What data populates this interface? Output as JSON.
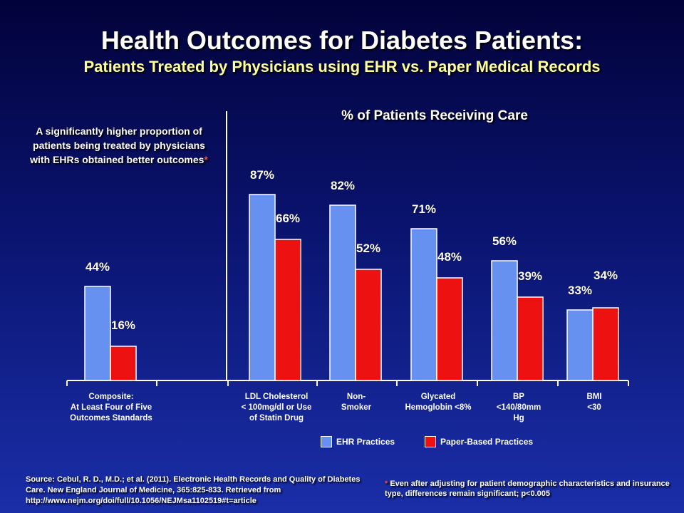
{
  "title": "Health Outcomes for Diabetes Patients:",
  "subtitle": "Patients Treated by Physicians using EHR vs. Paper Medical Records",
  "note": {
    "text": "A significantly higher proportion of patients being treated by physicians with EHRs obtained better outcomes",
    "marker": "*"
  },
  "chart_data": {
    "type": "bar",
    "title": "% of Patients Receiving Care",
    "categories": [
      "Composite: At Least Four of Five Outcomes Standards",
      "LDL Cholesterol < 100mg/dl or Use of Statin Drug",
      "Non- Smoker",
      "Glycated Hemoglobin <8%",
      "BP <140/80mm Hg",
      "BMI <30"
    ],
    "category_lines": [
      [
        "Composite:",
        "At Least Four of Five",
        "Outcomes Standards"
      ],
      [
        "LDL Cholesterol",
        "< 100mg/dl or Use",
        "of Statin Drug"
      ],
      [
        "Non-",
        "Smoker"
      ],
      [
        "Glycated",
        "Hemoglobin <8%"
      ],
      [
        "BP",
        "<140/80mm",
        "Hg"
      ],
      [
        "BMI",
        "<30"
      ]
    ],
    "series": [
      {
        "name": "EHR Practices",
        "color": "#6691f0",
        "values": [
          44,
          87,
          82,
          71,
          56,
          33
        ],
        "labels": [
          "44%",
          "87%",
          "82%",
          "71%",
          "56%",
          "33%"
        ]
      },
      {
        "name": "Paper-Based Practices",
        "color": "#ee1111",
        "values": [
          16,
          66,
          52,
          48,
          39,
          34
        ],
        "labels": [
          "16%",
          "66%",
          "52%",
          "48%",
          "39%",
          "34%"
        ]
      }
    ],
    "ylim": [
      0,
      100
    ],
    "grid": false,
    "legend": "bottom"
  },
  "source": "Source: Cebul, R. D., M.D.; et al. (2011). Electronic Health Records and Quality of Diabetes Care. New England Journal of Medicine, 365:825-833. Retrieved from http://www.nejm.org/doi/full/10.1056/NEJMsa1102519#t=article",
  "footnote": {
    "marker": "*",
    "text": "Even after adjusting for patient demographic characteristics and insurance type, differences remain significant; p<0.005"
  }
}
